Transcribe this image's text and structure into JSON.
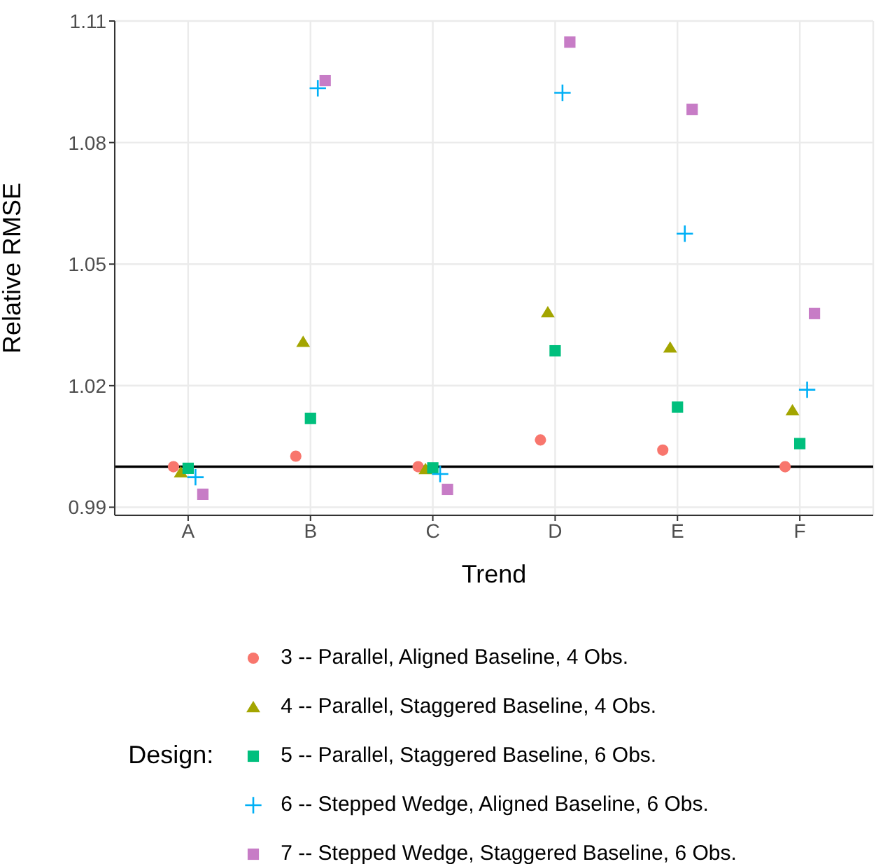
{
  "chart_data": {
    "type": "scatter",
    "xlabel": "Trend",
    "ylabel": "Relative RMSE",
    "legend_title": "Design:",
    "legend": "bottom",
    "grid": true,
    "categories": [
      "A",
      "B",
      "C",
      "D",
      "E",
      "F"
    ],
    "ylim": [
      0.988,
      1.11
    ],
    "yticks": [
      0.99,
      1.02,
      1.05,
      1.08,
      1.11
    ],
    "ref_lines": [
      {
        "axis": "y",
        "value": 1,
        "color": "#000000"
      }
    ],
    "series": [
      {
        "name": "3 -- Parallel, Aligned Baseline, 4 Obs.",
        "color": "#f8766d",
        "marker": "circle",
        "values": [
          1.0,
          1.0026,
          1.0,
          1.0066,
          1.0041,
          1.0
        ]
      },
      {
        "name": "4 -- Parallel, Staggered Baseline, 4 Obs.",
        "color": "#a3a500",
        "marker": "triangle",
        "values": [
          0.9986,
          1.0308,
          0.9994,
          1.0381,
          1.0294,
          1.0139
        ]
      },
      {
        "name": "5 -- Parallel, Staggered Baseline, 6 Obs.",
        "color": "#00bf7d",
        "marker": "square",
        "values": [
          0.9996,
          1.0119,
          0.9997,
          1.0286,
          1.0147,
          1.0057
        ]
      },
      {
        "name": "6 -- Stepped Wedge, Aligned Baseline, 6 Obs.",
        "color": "#00b0f6",
        "marker": "cross",
        "values": [
          0.9974,
          1.0934,
          0.9982,
          1.0923,
          1.0575,
          1.019
        ]
      },
      {
        "name": "7 -- Stepped Wedge, Staggered Baseline, 6 Obs.",
        "color": "#c77cc6",
        "marker": "square",
        "values": [
          0.9932,
          1.0953,
          0.9944,
          1.1048,
          1.0882,
          1.0378
        ]
      }
    ]
  }
}
